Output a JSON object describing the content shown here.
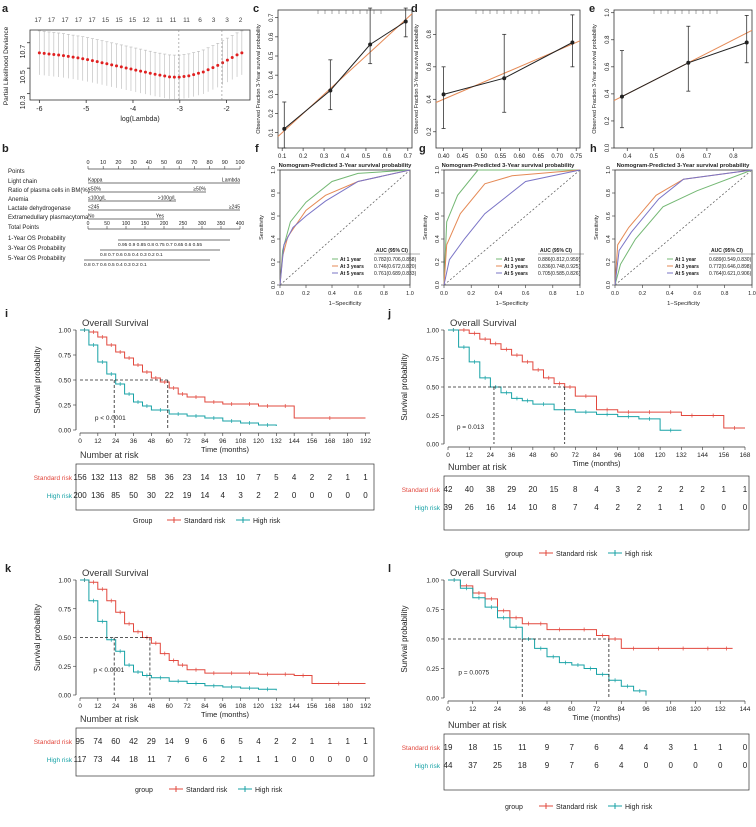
{
  "colors": {
    "red": "#e2483e",
    "teal": "#17a2a6",
    "green": "#74b874",
    "orange": "#e58a56",
    "purple": "#7a74c6",
    "gray": "#9a9a9a"
  },
  "panels": {
    "a": {
      "letter": "a",
      "xlabel": "log(Lambda)",
      "ylabel": "Partial Likelihood Deviance",
      "top_ticks": [
        "17",
        "17",
        "17",
        "17",
        "17",
        "15",
        "15",
        "15",
        "12",
        "11",
        "11",
        "11",
        "6",
        "3",
        "3",
        "2"
      ],
      "x_ticks": [
        "-6",
        "-5",
        "-4",
        "-3",
        "-2"
      ],
      "y_ticks": [
        "10.3",
        "10.5",
        "10.7"
      ]
    },
    "calib": {
      "xlabel": "Nomogram-Predicted 3-Year survival probability",
      "ylabel": "Observed Fraction 3-Year survival probability",
      "c": {
        "letter": "c",
        "x_ticks": [
          "0.1",
          "0.2",
          "0.3",
          "0.4",
          "0.5",
          "0.6",
          "0.7"
        ],
        "y_ticks": [
          "0.1",
          "0.2",
          "0.3",
          "0.4",
          "0.5",
          "0.6",
          "0.7"
        ]
      },
      "d": {
        "letter": "d",
        "x_ticks": [
          "0.40",
          "0.45",
          "0.50",
          "0.55",
          "0.60",
          "0.65",
          "0.70",
          "0.75"
        ],
        "y_ticks": [
          "0.2",
          "0.4",
          "0.6",
          "0.8"
        ]
      },
      "e": {
        "letter": "e",
        "x_ticks": [
          "0.4",
          "0.5",
          "0.6",
          "0.7",
          "0.8"
        ],
        "y_ticks": [
          "0.0",
          "0.2",
          "0.4",
          "0.6",
          "0.8",
          "1.0"
        ]
      }
    },
    "b": {
      "letter": "b",
      "rows": [
        "Points",
        "Light chain",
        "Ratio of plasma cells in BM(%)",
        "Anemia",
        "Lactate dehydrogenase",
        "Extramedullary plasmacytoma",
        "Total Points",
        "1-Year OS Probability",
        "3-Year OS Probability",
        "5-Year OS Probability"
      ],
      "points_ticks": [
        "0",
        "10",
        "20",
        "30",
        "40",
        "50",
        "60",
        "70",
        "80",
        "90",
        "100"
      ],
      "total_ticks": [
        "0",
        "50",
        "100",
        "150",
        "200",
        "250",
        "300",
        "350",
        "400"
      ],
      "labels": {
        "kappa": "Kappa",
        "lambda": "Lambda",
        "ratio_lo": "<50%",
        "ratio_hi": "≥50%",
        "anemia_lo": "≤100g/L",
        "anemia_hi": ">100g/L",
        "ldh_lo": "<245",
        "ldh_hi": "≥245",
        "emp_no": "No",
        "emp_yes": "Yes"
      },
      "p1": "0.95  0.9  0.85  0.8 0.75 0.7 0.65 0.6 0.55",
      "p3": "0.8  0.7  0.6  0.5 0.4 0.3  0.2   0.1",
      "p5": "0.8  0.7  0.6  0.5 0.4  0.3  0.2   0.1"
    },
    "roc": {
      "xlabel": "1−Specificity",
      "ylabel": "Sensitivity",
      "x_ticks": [
        "0.0",
        "0.2",
        "0.4",
        "0.6",
        "0.8",
        "1.0"
      ],
      "y_ticks": [
        "0.0",
        "0.2",
        "0.4",
        "0.6",
        "0.8",
        "1.0"
      ],
      "legend_head": "AUC (95% CI)",
      "legend_names": [
        "At 1 year",
        "At 3 years",
        "At 5 years"
      ],
      "f": {
        "letter": "f",
        "auc": [
          "0.782(0.706,0.858)",
          "0.746(0.672,0.820)",
          "0.761(0.689,0.833)"
        ]
      },
      "g": {
        "letter": "g",
        "auc": [
          "0.886(0.812,0.959)",
          "0.836(0.748,0.925)",
          "0.705(0.585,0.826)"
        ]
      },
      "h": {
        "letter": "h",
        "auc": [
          "0.689(0.549,0.830)",
          "0.772(0.646,0.898)",
          "0.764(0.621,0.906)"
        ]
      }
    },
    "km": {
      "title": "Overall Survival",
      "ylabel": "Survival probability",
      "xlabel": "Time (months)",
      "risk_title": "Number at risk",
      "y_ticks": [
        "0.00",
        "0.25",
        "0.50",
        "0.75",
        "1.00"
      ],
      "group_label_i": "Group",
      "group_label": "group",
      "std_label": "Standard risk",
      "high_label": "High risk",
      "i": {
        "letter": "i",
        "pvalue": "p < 0.0001",
        "x_ticks": [
          "0",
          "12",
          "24",
          "36",
          "48",
          "60",
          "72",
          "84",
          "96",
          "108",
          "120",
          "132",
          "144",
          "156",
          "168",
          "180",
          "192"
        ],
        "std_risk": [
          "156",
          "132",
          "113",
          "82",
          "58",
          "36",
          "23",
          "14",
          "13",
          "10",
          "7",
          "5",
          "4",
          "2",
          "2",
          "1",
          "1"
        ],
        "high_risk": [
          "200",
          "136",
          "85",
          "50",
          "30",
          "22",
          "19",
          "14",
          "4",
          "3",
          "2",
          "2",
          "0",
          "0",
          "0",
          "0",
          "0"
        ]
      },
      "j": {
        "letter": "j",
        "pvalue": "p = 0.013",
        "x_ticks": [
          "0",
          "12",
          "24",
          "36",
          "48",
          "60",
          "72",
          "84",
          "96",
          "108",
          "120",
          "132",
          "144",
          "156",
          "168"
        ],
        "std_risk": [
          "42",
          "40",
          "38",
          "29",
          "20",
          "15",
          "8",
          "4",
          "3",
          "2",
          "2",
          "2",
          "2",
          "1",
          "1"
        ],
        "high_risk": [
          "39",
          "26",
          "16",
          "14",
          "10",
          "8",
          "7",
          "4",
          "2",
          "2",
          "1",
          "1",
          "0",
          "0",
          "0"
        ]
      },
      "k": {
        "letter": "k",
        "pvalue": "p < 0.0001",
        "x_ticks": [
          "0",
          "12",
          "24",
          "36",
          "48",
          "60",
          "72",
          "84",
          "96",
          "108",
          "120",
          "132",
          "144",
          "156",
          "168",
          "180",
          "192"
        ],
        "std_risk": [
          "95",
          "74",
          "60",
          "42",
          "29",
          "14",
          "9",
          "6",
          "6",
          "5",
          "4",
          "2",
          "2",
          "1",
          "1",
          "1",
          "1"
        ],
        "high_risk": [
          "117",
          "73",
          "44",
          "18",
          "11",
          "7",
          "6",
          "6",
          "2",
          "1",
          "1",
          "1",
          "0",
          "0",
          "0",
          "0",
          "0"
        ]
      },
      "l": {
        "letter": "l",
        "pvalue": "p = 0.0075",
        "x_ticks": [
          "0",
          "12",
          "24",
          "36",
          "48",
          "60",
          "72",
          "84",
          "96",
          "108",
          "120",
          "132",
          "144"
        ],
        "std_risk": [
          "19",
          "18",
          "15",
          "11",
          "9",
          "7",
          "6",
          "4",
          "4",
          "3",
          "1",
          "1",
          "0"
        ],
        "high_risk": [
          "44",
          "37",
          "25",
          "18",
          "9",
          "7",
          "6",
          "4",
          "0",
          "0",
          "0",
          "0",
          "0"
        ]
      }
    }
  },
  "chart_data": [
    {
      "type": "line",
      "panel": "c",
      "xlabel": "Nomogram-Predicted 3-Year survival probability",
      "ylabel": "Observed Fraction 3-Year survival probability",
      "xlim": [
        0.08,
        0.72
      ],
      "ylim": [
        0.02,
        0.74
      ],
      "series": [
        {
          "x": [
            0.11,
            0.33,
            0.52,
            0.69
          ],
          "y": [
            0.12,
            0.32,
            0.56,
            0.68
          ],
          "lo": [
            0.02,
            0.22,
            0.46,
            0.6
          ],
          "hi": [
            0.26,
            0.48,
            0.75,
            0.75
          ]
        }
      ]
    },
    {
      "type": "line",
      "panel": "d",
      "xlabel": "Nomogram-Predicted 3-Year survival probability",
      "ylabel": "Observed Fraction 3-Year survival probability",
      "xlim": [
        0.38,
        0.76
      ],
      "ylim": [
        0.1,
        0.95
      ],
      "series": [
        {
          "x": [
            0.4,
            0.56,
            0.74
          ],
          "y": [
            0.43,
            0.53,
            0.75
          ],
          "lo": [
            0.22,
            0.32,
            0.6
          ],
          "hi": [
            0.6,
            0.8,
            0.92
          ]
        }
      ]
    },
    {
      "type": "line",
      "panel": "e",
      "xlabel": "Nomogram-Predicted 3-Year survival probability",
      "ylabel": "Observed Fraction 3-Year survival probability",
      "xlim": [
        0.35,
        0.87
      ],
      "ylim": [
        0.0,
        1.02
      ],
      "series": [
        {
          "x": [
            0.38,
            0.63,
            0.85
          ],
          "y": [
            0.38,
            0.63,
            0.78
          ],
          "lo": [
            0.15,
            0.42,
            0.63
          ],
          "hi": [
            0.72,
            0.9,
            0.98
          ]
        }
      ]
    },
    {
      "type": "line",
      "panel": "a",
      "xlabel": "log(Lambda)",
      "ylabel": "Partial Likelihood Deviance",
      "xlim": [
        -6.2,
        -1.5
      ],
      "ylim": [
        10.25,
        10.8
      ],
      "series": [
        {
          "name": "CV deviance",
          "x": [
            -6.0,
            -5.5,
            -5.0,
            -4.5,
            -4.0,
            -3.5,
            -3.2,
            -3.0,
            -2.8,
            -2.5,
            -2.2,
            -2.0,
            -1.7
          ],
          "y": [
            10.62,
            10.6,
            10.57,
            10.53,
            10.49,
            10.45,
            10.43,
            10.43,
            10.44,
            10.47,
            10.52,
            10.56,
            10.62
          ]
        }
      ]
    },
    {
      "type": "line",
      "panel": "f",
      "series": [
        {
          "name": "At 1 year",
          "auc": 0.782
        },
        {
          "name": "At 3 years",
          "auc": 0.746
        },
        {
          "name": "At 5 years",
          "auc": 0.761
        }
      ]
    },
    {
      "type": "line",
      "panel": "g",
      "series": [
        {
          "name": "At 1 year",
          "auc": 0.886
        },
        {
          "name": "At 3 years",
          "auc": 0.836
        },
        {
          "name": "At 5 years",
          "auc": 0.705
        }
      ]
    },
    {
      "type": "line",
      "panel": "h",
      "series": [
        {
          "name": "At 1 year",
          "auc": 0.689
        },
        {
          "name": "At 3 years",
          "auc": 0.772
        },
        {
          "name": "At 5 years",
          "auc": 0.764
        }
      ]
    },
    {
      "type": "line",
      "panel": "i",
      "xlim": [
        0,
        195
      ],
      "ylim": [
        0,
        1
      ],
      "series": [
        {
          "name": "Standard risk",
          "x": [
            0,
            6,
            12,
            18,
            24,
            30,
            36,
            42,
            48,
            54,
            60,
            66,
            72,
            84,
            96,
            108,
            120,
            132,
            144,
            192
          ],
          "y": [
            1.0,
            0.98,
            0.93,
            0.85,
            0.78,
            0.72,
            0.65,
            0.58,
            0.52,
            0.48,
            0.42,
            0.36,
            0.33,
            0.28,
            0.26,
            0.26,
            0.24,
            0.24,
            0.12,
            0.12
          ]
        },
        {
          "name": "High risk",
          "x": [
            0,
            6,
            12,
            18,
            24,
            30,
            36,
            42,
            48,
            60,
            72,
            84,
            96,
            108,
            120,
            132
          ],
          "y": [
            1.0,
            0.85,
            0.68,
            0.56,
            0.46,
            0.36,
            0.28,
            0.24,
            0.2,
            0.16,
            0.14,
            0.12,
            0.09,
            0.07,
            0.05,
            0.04
          ]
        }
      ]
    },
    {
      "type": "line",
      "panel": "j",
      "xlim": [
        0,
        168
      ],
      "ylim": [
        0,
        1
      ],
      "series": [
        {
          "name": "Standard risk",
          "x": [
            0,
            6,
            12,
            18,
            24,
            30,
            36,
            42,
            48,
            54,
            60,
            66,
            72,
            84,
            96,
            108,
            120,
            132,
            144,
            156,
            168
          ],
          "y": [
            1.0,
            1.0,
            0.97,
            0.92,
            0.88,
            0.83,
            0.78,
            0.72,
            0.65,
            0.58,
            0.53,
            0.5,
            0.42,
            0.3,
            0.28,
            0.28,
            0.28,
            0.25,
            0.25,
            0.14,
            0.14
          ]
        },
        {
          "name": "High risk",
          "x": [
            0,
            6,
            12,
            18,
            24,
            30,
            36,
            42,
            48,
            60,
            72,
            84,
            96,
            108,
            120,
            132
          ],
          "y": [
            1.0,
            0.85,
            0.72,
            0.58,
            0.5,
            0.45,
            0.4,
            0.38,
            0.35,
            0.3,
            0.28,
            0.26,
            0.24,
            0.22,
            0.12,
            0.12
          ]
        }
      ]
    },
    {
      "type": "line",
      "panel": "k",
      "xlim": [
        0,
        195
      ],
      "ylim": [
        0,
        1
      ],
      "series": [
        {
          "name": "Standard risk",
          "x": [
            0,
            6,
            12,
            18,
            24,
            30,
            36,
            42,
            48,
            54,
            60,
            66,
            72,
            84,
            96,
            108,
            120,
            132,
            144,
            156,
            192
          ],
          "y": [
            1.0,
            0.98,
            0.92,
            0.82,
            0.72,
            0.62,
            0.55,
            0.5,
            0.45,
            0.36,
            0.3,
            0.26,
            0.22,
            0.19,
            0.19,
            0.19,
            0.18,
            0.18,
            0.17,
            0.1,
            0.1
          ]
        },
        {
          "name": "High risk",
          "x": [
            0,
            6,
            12,
            18,
            24,
            30,
            36,
            42,
            48,
            60,
            72,
            84,
            96,
            108,
            120,
            132
          ],
          "y": [
            1.0,
            0.82,
            0.64,
            0.48,
            0.38,
            0.26,
            0.2,
            0.17,
            0.15,
            0.12,
            0.1,
            0.08,
            0.07,
            0.06,
            0.05,
            0.04
          ]
        }
      ]
    },
    {
      "type": "line",
      "panel": "l",
      "xlim": [
        0,
        144
      ],
      "ylim": [
        0,
        1
      ],
      "series": [
        {
          "name": "Standard risk",
          "x": [
            0,
            6,
            12,
            18,
            24,
            30,
            36,
            42,
            48,
            60,
            72,
            78,
            84,
            96,
            108,
            120,
            132,
            138
          ],
          "y": [
            1.0,
            0.95,
            0.89,
            0.84,
            0.74,
            0.68,
            0.63,
            0.63,
            0.58,
            0.58,
            0.53,
            0.5,
            0.42,
            0.42,
            0.42,
            0.42,
            0.42,
            0.42
          ]
        },
        {
          "name": "High risk",
          "x": [
            0,
            6,
            12,
            18,
            24,
            30,
            36,
            42,
            48,
            54,
            60,
            66,
            72,
            78,
            84,
            90,
            96
          ],
          "y": [
            1.0,
            0.93,
            0.85,
            0.77,
            0.68,
            0.6,
            0.5,
            0.42,
            0.35,
            0.3,
            0.28,
            0.25,
            0.2,
            0.15,
            0.1,
            0.06,
            0.02
          ]
        }
      ]
    }
  ]
}
